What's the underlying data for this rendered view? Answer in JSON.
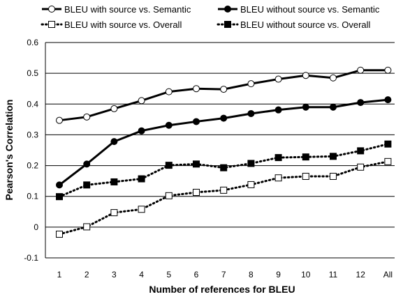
{
  "chart_data": {
    "type": "line",
    "title": "",
    "xlabel": "Number of references for BLEU",
    "ylabel": "Pearson's Correlation",
    "categories": [
      "1",
      "2",
      "3",
      "4",
      "5",
      "6",
      "7",
      "8",
      "9",
      "10",
      "11",
      "12",
      "All"
    ],
    "ylim": [
      -0.1,
      0.6
    ],
    "yticks": [
      "-0.1",
      "0",
      "0.1",
      "0.2",
      "0.3",
      "0.4",
      "0.5",
      "0.6"
    ],
    "grid": "horizontal",
    "legend_position": "top",
    "series": [
      {
        "name": "BLEU with source vs. Semantic",
        "style": "solid",
        "marker": "circle-open",
        "values": [
          0.347,
          0.358,
          0.385,
          0.411,
          0.44,
          0.45,
          0.448,
          0.466,
          0.481,
          0.493,
          0.485,
          0.51,
          0.51
        ]
      },
      {
        "name": "BLEU without source vs. Semantic",
        "style": "solid",
        "marker": "circle-filled",
        "values": [
          0.137,
          0.205,
          0.278,
          0.313,
          0.331,
          0.343,
          0.354,
          0.369,
          0.381,
          0.39,
          0.39,
          0.405,
          0.414
        ]
      },
      {
        "name": "BLEU with source vs. Overall",
        "style": "dotted",
        "marker": "square-open",
        "values": [
          -0.023,
          0.001,
          0.047,
          0.058,
          0.102,
          0.113,
          0.12,
          0.138,
          0.16,
          0.165,
          0.165,
          0.195,
          0.213
        ]
      },
      {
        "name": "BLEU without source vs. Overall",
        "style": "dotted",
        "marker": "square-filled",
        "values": [
          0.099,
          0.137,
          0.147,
          0.157,
          0.201,
          0.205,
          0.193,
          0.207,
          0.226,
          0.228,
          0.23,
          0.248,
          0.27
        ]
      }
    ]
  }
}
